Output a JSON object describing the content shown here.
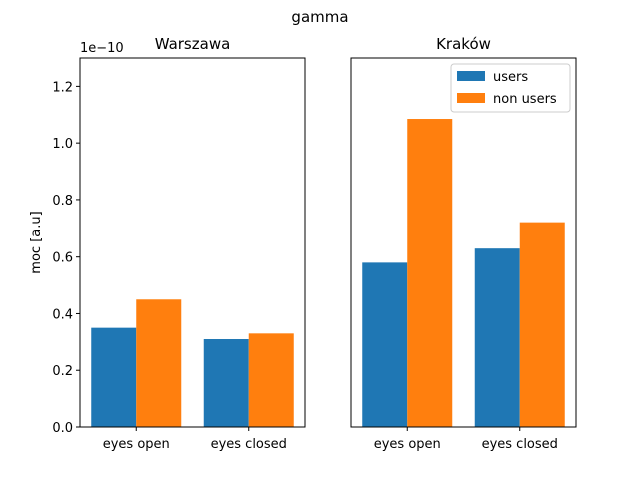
{
  "figure": {
    "suptitle": "gamma"
  },
  "chart_data": [
    {
      "type": "bar",
      "title": "Warszawa",
      "categories": [
        "eyes open",
        "eyes closed"
      ],
      "series": [
        {
          "name": "users",
          "values": [
            3.5e-11,
            3.1e-11
          ]
        },
        {
          "name": "non users",
          "values": [
            4.5e-11,
            3.3e-11
          ]
        }
      ],
      "ylabel": "moc [a.u]",
      "ylim": [
        0,
        1.3e-10
      ],
      "yticks": [
        0,
        2e-11,
        4e-11,
        6e-11,
        8e-11,
        1e-10,
        1.2e-10
      ],
      "ytick_labels": [
        "0.0",
        "0.2",
        "0.4",
        "0.6",
        "0.8",
        "1.0",
        "1.2"
      ],
      "offset_text": "1e−10",
      "legend": null
    },
    {
      "type": "bar",
      "title": "Kraków",
      "categories": [
        "eyes open",
        "eyes closed"
      ],
      "series": [
        {
          "name": "users",
          "values": [
            5.8e-11,
            6.3e-11
          ]
        },
        {
          "name": "non users",
          "values": [
            1.085e-10,
            7.2e-11
          ]
        }
      ],
      "ylim": [
        0,
        1.3e-10
      ],
      "legend": "top-right"
    }
  ],
  "colors": {
    "users": "#1f77b4",
    "non users": "#ff7f0e"
  }
}
